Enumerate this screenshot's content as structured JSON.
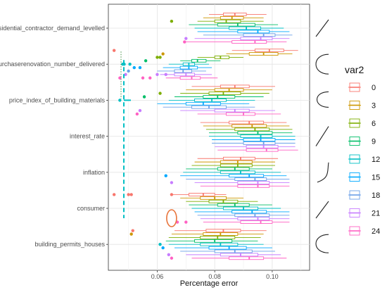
{
  "chart_data": {
    "type": "boxplot",
    "xlabel": "Percentage error",
    "ylabel": "",
    "xlim": [
      0.043,
      0.113
    ],
    "x_ticks": [
      "0.06",
      "0.08",
      "0.10"
    ],
    "x_tick_values": [
      0.06,
      0.08,
      0.1
    ],
    "grid": true,
    "legend": {
      "title": "var2",
      "position": "right"
    },
    "categories": [
      "residential_contractor_demand_levelled",
      "purchaserenovation_number_delivered",
      "price_index_of_building_materials",
      "interest_rate",
      "inflation",
      "consumer",
      "building_permits_houses"
    ],
    "series": [
      {
        "name": "0",
        "color": "#F8766D"
      },
      {
        "name": "3",
        "color": "#CD9600"
      },
      {
        "name": "6",
        "color": "#7CAE00"
      },
      {
        "name": "9",
        "color": "#00BE67"
      },
      {
        "name": "12",
        "color": "#00BFC4"
      },
      {
        "name": "15",
        "color": "#00A9FF"
      },
      {
        "name": "18",
        "color": "#6A9FE8"
      },
      {
        "name": "21",
        "color": "#C77CFF"
      },
      {
        "name": "24",
        "color": "#FF61C3"
      }
    ],
    "boxes": {
      "residential_contractor_demand_levelled": [
        [
          0.078,
          0.083,
          0.087,
          0.091,
          0.098
        ],
        [
          0.076,
          0.082,
          0.086,
          0.09,
          0.097
        ],
        [
          0.074,
          0.08,
          0.084,
          0.089,
          0.097
        ],
        [
          0.071,
          0.081,
          0.088,
          0.094,
          0.102
        ],
        [
          0.073,
          0.085,
          0.091,
          0.096,
          0.104
        ],
        [
          0.074,
          0.088,
          0.095,
          0.099,
          0.106
        ],
        [
          0.076,
          0.09,
          0.097,
          0.101,
          0.107
        ],
        [
          0.073,
          0.089,
          0.096,
          0.1,
          0.106
        ],
        [
          0.07,
          0.086,
          0.094,
          0.098,
          0.105
        ]
      ],
      "purchaserenovation_number_delivered": [
        [
          0.086,
          0.094,
          0.099,
          0.104,
          0.109
        ],
        [
          0.084,
          0.092,
          0.097,
          0.102,
          0.107
        ],
        [
          0.074,
          0.08,
          0.082,
          0.085,
          0.09
        ],
        [
          0.068,
          0.072,
          0.074,
          0.077,
          0.082
        ],
        [
          0.064,
          0.069,
          0.071,
          0.073,
          0.078
        ],
        [
          0.062,
          0.068,
          0.071,
          0.074,
          0.079
        ],
        [
          0.06,
          0.066,
          0.069,
          0.072,
          0.077
        ],
        [
          0.061,
          0.066,
          0.07,
          0.073,
          0.079
        ],
        [
          0.063,
          0.068,
          0.072,
          0.075,
          0.081
        ]
      ],
      "price_index_of_building_materials": [
        [
          0.072,
          0.082,
          0.087,
          0.092,
          0.101
        ],
        [
          0.07,
          0.08,
          0.085,
          0.09,
          0.1
        ],
        [
          0.068,
          0.078,
          0.083,
          0.089,
          0.099
        ],
        [
          0.066,
          0.076,
          0.081,
          0.087,
          0.097
        ],
        [
          0.064,
          0.073,
          0.079,
          0.084,
          0.094
        ],
        [
          0.06,
          0.07,
          0.076,
          0.082,
          0.092
        ],
        [
          0.062,
          0.072,
          0.078,
          0.084,
          0.094
        ],
        [
          0.068,
          0.08,
          0.087,
          0.092,
          0.101
        ],
        [
          0.074,
          0.084,
          0.09,
          0.094,
          0.103
        ]
      ],
      "interest_rate": [
        [
          0.075,
          0.085,
          0.092,
          0.097,
          0.105
        ],
        [
          0.076,
          0.086,
          0.093,
          0.098,
          0.106
        ],
        [
          0.077,
          0.087,
          0.094,
          0.099,
          0.107
        ],
        [
          0.078,
          0.088,
          0.095,
          0.1,
          0.107
        ],
        [
          0.078,
          0.089,
          0.096,
          0.1,
          0.108
        ],
        [
          0.079,
          0.09,
          0.096,
          0.101,
          0.108
        ],
        [
          0.079,
          0.09,
          0.097,
          0.101,
          0.108
        ],
        [
          0.08,
          0.091,
          0.097,
          0.102,
          0.108
        ],
        [
          0.081,
          0.091,
          0.098,
          0.102,
          0.109
        ]
      ],
      "inflation": [
        [
          0.074,
          0.083,
          0.089,
          0.094,
          0.102
        ],
        [
          0.073,
          0.082,
          0.088,
          0.093,
          0.101
        ],
        [
          0.072,
          0.082,
          0.088,
          0.093,
          0.101
        ],
        [
          0.07,
          0.081,
          0.087,
          0.092,
          0.1
        ],
        [
          0.069,
          0.082,
          0.089,
          0.094,
          0.103
        ],
        [
          0.068,
          0.085,
          0.092,
          0.097,
          0.105
        ],
        [
          0.07,
          0.087,
          0.094,
          0.098,
          0.106
        ],
        [
          0.073,
          0.088,
          0.095,
          0.099,
          0.106
        ],
        [
          0.075,
          0.088,
          0.095,
          0.099,
          0.106
        ]
      ],
      "consumer": [
        [
          0.065,
          0.071,
          0.076,
          0.08,
          0.084
        ],
        [
          0.068,
          0.075,
          0.08,
          0.084,
          0.09
        ],
        [
          0.07,
          0.078,
          0.083,
          0.088,
          0.095
        ],
        [
          0.071,
          0.081,
          0.087,
          0.092,
          0.1
        ],
        [
          0.072,
          0.083,
          0.09,
          0.095,
          0.103
        ],
        [
          0.073,
          0.086,
          0.093,
          0.098,
          0.106
        ],
        [
          0.074,
          0.087,
          0.094,
          0.099,
          0.106
        ],
        [
          0.075,
          0.088,
          0.095,
          0.099,
          0.106
        ],
        [
          0.076,
          0.089,
          0.096,
          0.1,
          0.106
        ]
      ],
      "building_permits_houses": [
        [
          0.066,
          0.077,
          0.083,
          0.089,
          0.098
        ],
        [
          0.065,
          0.076,
          0.082,
          0.088,
          0.097
        ],
        [
          0.064,
          0.075,
          0.081,
          0.087,
          0.096
        ],
        [
          0.063,
          0.073,
          0.08,
          0.086,
          0.095
        ],
        [
          0.064,
          0.075,
          0.082,
          0.088,
          0.097
        ],
        [
          0.066,
          0.078,
          0.085,
          0.091,
          0.1
        ],
        [
          0.068,
          0.08,
          0.087,
          0.093,
          0.101
        ],
        [
          0.07,
          0.082,
          0.089,
          0.095,
          0.103
        ],
        [
          0.072,
          0.085,
          0.092,
          0.097,
          0.105
        ]
      ]
    },
    "outliers": [
      {
        "category": "residential_contractor_demand_levelled",
        "series": "24",
        "x": 0.0695
      },
      {
        "category": "residential_contractor_demand_levelled",
        "series": "21",
        "x": 0.07
      },
      {
        "category": "residential_contractor_demand_levelled",
        "series": "6",
        "x": 0.065
      },
      {
        "category": "purchaserenovation_number_delivered",
        "series": "0",
        "x": 0.045
      },
      {
        "category": "purchaserenovation_number_delivered",
        "series": "24",
        "x": 0.047
      },
      {
        "category": "purchaserenovation_number_delivered",
        "series": "21",
        "x": 0.049
      },
      {
        "category": "purchaserenovation_number_delivered",
        "series": "24",
        "x": 0.055
      },
      {
        "category": "purchaserenovation_number_delivered",
        "series": "21",
        "x": 0.06
      },
      {
        "category": "purchaserenovation_number_delivered",
        "series": "3",
        "x": 0.062
      },
      {
        "category": "purchaserenovation_number_delivered",
        "series": "12",
        "x": 0.0505
      },
      {
        "category": "purchaserenovation_number_delivered",
        "series": "15",
        "x": 0.052
      },
      {
        "category": "purchaserenovation_number_delivered",
        "series": "12",
        "x": 0.0485
      },
      {
        "category": "purchaserenovation_number_delivered",
        "series": "15",
        "x": 0.054
      },
      {
        "category": "purchaserenovation_number_delivered",
        "series": "6",
        "x": 0.06
      },
      {
        "category": "purchaserenovation_number_delivered",
        "series": "9",
        "x": 0.056
      },
      {
        "category": "purchaserenovation_number_delivered",
        "series": "6",
        "x": 0.061
      },
      {
        "category": "purchaserenovation_number_delivered",
        "series": "12",
        "x": 0.048
      },
      {
        "category": "purchaserenovation_number_delivered",
        "series": "18",
        "x": 0.05
      },
      {
        "category": "purchaserenovation_number_delivered",
        "series": "24",
        "x": 0.0575
      },
      {
        "category": "purchaserenovation_number_delivered",
        "series": "21",
        "x": 0.063
      },
      {
        "category": "price_index_of_building_materials",
        "series": "24",
        "x": 0.053
      },
      {
        "category": "price_index_of_building_materials",
        "series": "21",
        "x": 0.054
      },
      {
        "category": "price_index_of_building_materials",
        "series": "12",
        "x": 0.047
      },
      {
        "category": "price_index_of_building_materials",
        "series": "9",
        "x": 0.0555
      },
      {
        "category": "price_index_of_building_materials",
        "series": "6",
        "x": 0.061
      },
      {
        "category": "inflation",
        "series": "15",
        "x": 0.063
      },
      {
        "category": "inflation",
        "series": "21",
        "x": 0.065
      },
      {
        "category": "consumer",
        "series": "24",
        "x": 0.067
      },
      {
        "category": "consumer",
        "series": "24",
        "x": 0.07
      },
      {
        "category": "consumer",
        "series": "0",
        "x": 0.045
      },
      {
        "category": "consumer",
        "series": "0",
        "x": 0.05
      },
      {
        "category": "consumer",
        "series": "0",
        "x": 0.051
      },
      {
        "category": "consumer",
        "series": "0",
        "x": 0.065
      },
      {
        "category": "building_permits_houses",
        "series": "24",
        "x": 0.065
      },
      {
        "category": "building_permits_houses",
        "series": "21",
        "x": 0.064
      },
      {
        "category": "building_permits_houses",
        "series": "15",
        "x": 0.062
      },
      {
        "category": "building_permits_houses",
        "series": "12",
        "x": 0.061
      },
      {
        "category": "building_permits_houses",
        "series": "3",
        "x": 0.051
      },
      {
        "category": "building_permits_houses",
        "series": "0",
        "x": 0.0515
      }
    ]
  }
}
